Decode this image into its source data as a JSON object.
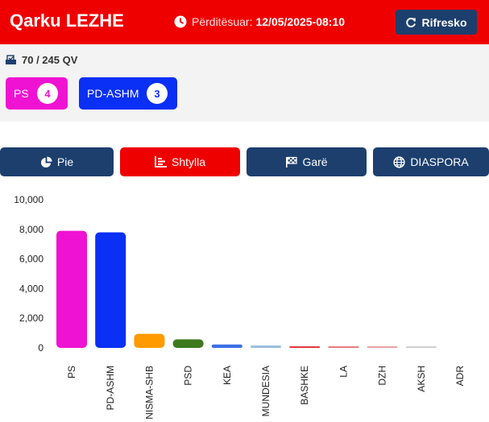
{
  "header": {
    "title": "Qarku LEZHE",
    "updated_label": "Përditësuar:",
    "updated_value": "12/05/2025-08:10",
    "refresh_label": "Rifresko",
    "bg_color": "#ee0000"
  },
  "summary": {
    "qv_text": "70 / 245 QV",
    "parties": [
      {
        "name": "PS",
        "seats": "4",
        "color": "#f012d2"
      },
      {
        "name": "PD-ASHM",
        "seats": "3",
        "color": "#0a2ff5"
      }
    ]
  },
  "tabs": [
    {
      "label": "Pie",
      "icon": "pie-chart-icon",
      "active": false
    },
    {
      "label": "Shtylla",
      "icon": "bar-chart-icon",
      "active": true
    },
    {
      "label": "Garë",
      "icon": "race-flag-icon",
      "active": false
    },
    {
      "label": "DIASPORA",
      "icon": "globe-icon",
      "active": false
    }
  ],
  "chart_data": {
    "type": "bar",
    "categories": [
      "PS",
      "PD-ASHM",
      "NISMA-SHB",
      "PSD",
      "KEA",
      "MUNDESIA",
      "BASHKE",
      "LA",
      "DZH",
      "AKSH",
      "ADR"
    ],
    "values": [
      7900,
      7800,
      950,
      580,
      230,
      160,
      70,
      40,
      30,
      20,
      0
    ],
    "colors": [
      "#f012d2",
      "#0a2ff5",
      "#ff9a00",
      "#3d7a1e",
      "#3b6fe6",
      "#9bbfe0",
      "#e23a3a",
      "#e87a7a",
      "#e8a0a0",
      "#cfcfcf",
      "#cfcfcf"
    ],
    "ylim": [
      0,
      10000
    ],
    "yticks": [
      "10,000",
      "8,000",
      "6,000",
      "4,000",
      "2,000",
      "0"
    ],
    "ytick_values": [
      10000,
      8000,
      6000,
      4000,
      2000,
      0
    ],
    "grid": false
  }
}
